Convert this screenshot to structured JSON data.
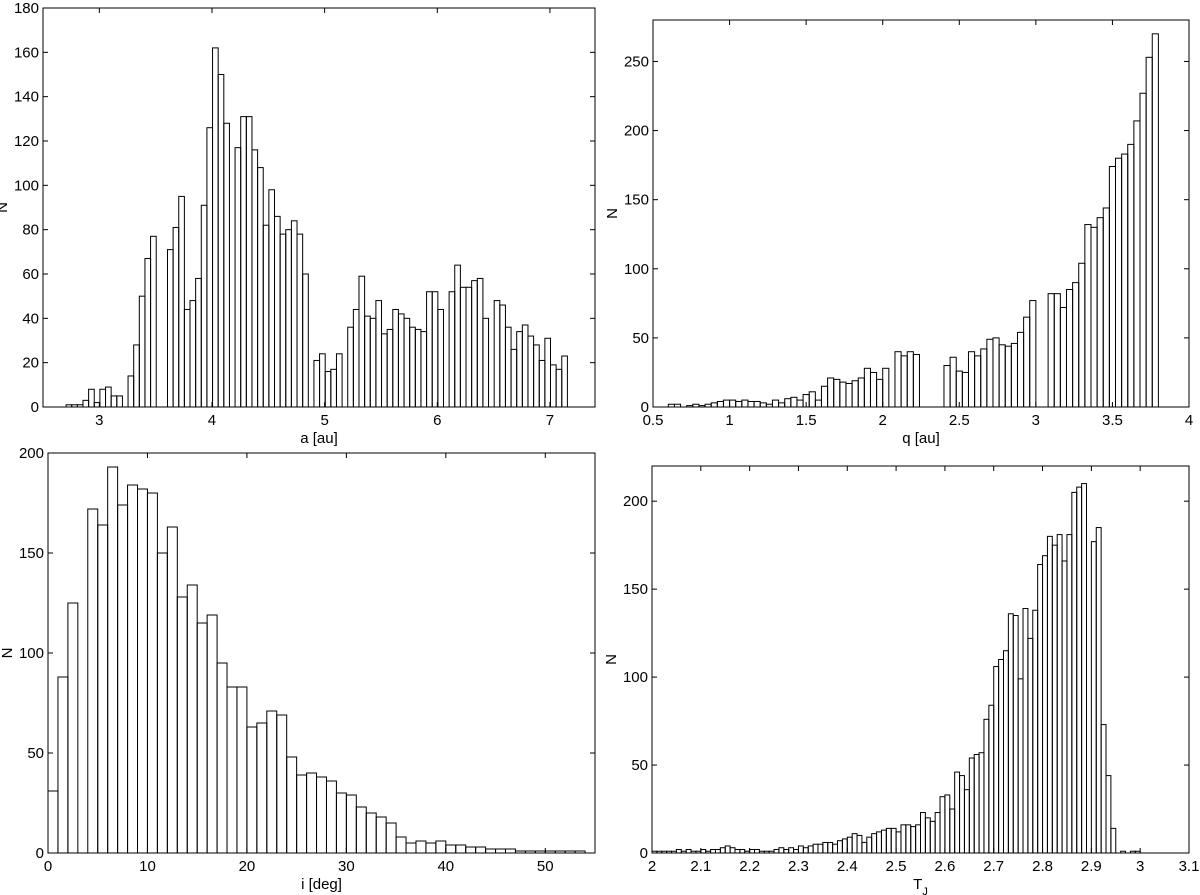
{
  "chart_data": [
    {
      "type": "bar",
      "xlabel": "a [au]",
      "ylabel": "N",
      "xlim": [
        2.5,
        7.4
      ],
      "ylim": [
        0,
        180
      ],
      "xticks": [
        3,
        4,
        5,
        6,
        7
      ],
      "yticks": [
        0,
        20,
        40,
        60,
        80,
        100,
        120,
        140,
        160,
        180
      ],
      "bin_width": 0.05,
      "x": [
        2.73,
        2.78,
        2.83,
        2.88,
        2.93,
        2.98,
        3.03,
        3.08,
        3.13,
        3.18,
        3.23,
        3.28,
        3.33,
        3.38,
        3.43,
        3.48,
        3.53,
        3.58,
        3.63,
        3.68,
        3.73,
        3.78,
        3.83,
        3.88,
        3.93,
        3.98,
        4.03,
        4.08,
        4.13,
        4.18,
        4.23,
        4.28,
        4.33,
        4.38,
        4.43,
        4.48,
        4.53,
        4.58,
        4.63,
        4.68,
        4.73,
        4.78,
        4.83,
        4.88,
        4.93,
        4.98,
        5.03,
        5.08,
        5.13,
        5.18,
        5.23,
        5.28,
        5.33,
        5.38,
        5.43,
        5.48,
        5.53,
        5.58,
        5.63,
        5.68,
        5.73,
        5.78,
        5.83,
        5.88,
        5.93,
        5.98,
        6.03,
        6.08,
        6.13,
        6.18,
        6.23,
        6.28,
        6.33,
        6.38,
        6.43,
        6.48,
        6.53,
        6.58,
        6.63,
        6.68,
        6.73,
        6.78,
        6.83,
        6.88,
        6.93,
        6.98,
        7.03,
        7.08,
        7.13,
        7.18,
        7.23,
        7.28
      ],
      "values": [
        1,
        1,
        1,
        3,
        8,
        2,
        8,
        9,
        5,
        5,
        0,
        14,
        28,
        50,
        67,
        77,
        0,
        0,
        71,
        81,
        95,
        44,
        48,
        58,
        91,
        126,
        162,
        150,
        128,
        0,
        117,
        131,
        131,
        116,
        108,
        82,
        98,
        86,
        78,
        80,
        84,
        78,
        60,
        0,
        21,
        24,
        16,
        17,
        24,
        0,
        36,
        44,
        59,
        41,
        40,
        48,
        33,
        35,
        44,
        42,
        40,
        36,
        35,
        34,
        52,
        52,
        44,
        0,
        52,
        64,
        54,
        54,
        57,
        58,
        40,
        0,
        48,
        46,
        36,
        26,
        34,
        37,
        32,
        28,
        21,
        31,
        19,
        17,
        23,
        0,
        0,
        0
      ]
    },
    {
      "type": "bar",
      "xlabel": "q [au]",
      "ylabel": "N",
      "xlim": [
        0.5,
        4
      ],
      "ylim": [
        0,
        280
      ],
      "xticks": [
        0.5,
        1,
        1.5,
        2,
        2.5,
        3,
        3.5,
        4
      ],
      "yticks": [
        0,
        50,
        100,
        150,
        200,
        250
      ],
      "bin_width": 0.04,
      "x": [
        0.62,
        0.66,
        0.7,
        0.74,
        0.78,
        0.82,
        0.86,
        0.9,
        0.94,
        0.98,
        1.02,
        1.06,
        1.1,
        1.14,
        1.18,
        1.22,
        1.26,
        1.3,
        1.34,
        1.38,
        1.42,
        1.46,
        1.5,
        1.54,
        1.58,
        1.62,
        1.66,
        1.7,
        1.74,
        1.78,
        1.82,
        1.86,
        1.9,
        1.94,
        1.98,
        2.02,
        2.06,
        2.1,
        2.14,
        2.18,
        2.22,
        2.26,
        2.3,
        2.34,
        2.38,
        2.42,
        2.46,
        2.5,
        2.54,
        2.58,
        2.62,
        2.66,
        2.7,
        2.74,
        2.78,
        2.82,
        2.86,
        2.9,
        2.94,
        2.98,
        3.02,
        3.06,
        3.1,
        3.14,
        3.18,
        3.22,
        3.26,
        3.3,
        3.34,
        3.38,
        3.42,
        3.46,
        3.5,
        3.54,
        3.58,
        3.62,
        3.66,
        3.7,
        3.74,
        3.78,
        3.82
      ],
      "values": [
        2,
        2,
        0,
        1,
        2,
        1,
        2,
        3,
        4,
        5,
        5,
        4,
        5,
        4,
        4,
        3,
        2,
        5,
        3,
        6,
        7,
        5,
        9,
        11,
        5,
        15,
        21,
        20,
        18,
        17,
        19,
        21,
        28,
        25,
        20,
        28,
        0,
        40,
        37,
        40,
        38,
        0,
        0,
        0,
        0,
        30,
        36,
        26,
        25,
        40,
        37,
        42,
        49,
        50,
        45,
        44,
        46,
        54,
        65,
        77,
        0,
        0,
        82,
        82,
        72,
        85,
        90,
        104,
        132,
        130,
        137,
        144,
        174,
        180,
        183,
        190,
        207,
        227,
        253,
        270,
        0
      ]
    },
    {
      "type": "bar",
      "xlabel": "i [deg]",
      "ylabel": "N",
      "xlim": [
        0,
        55
      ],
      "ylim": [
        0,
        200
      ],
      "xticks": [
        0,
        10,
        20,
        30,
        40,
        50
      ],
      "yticks": [
        0,
        50,
        100,
        150,
        200
      ],
      "bin_width": 1,
      "x": [
        0.5,
        1.5,
        2.5,
        3.5,
        4.5,
        5.5,
        6.5,
        7.5,
        8.5,
        9.5,
        10.5,
        11.5,
        12.5,
        13.5,
        14.5,
        15.5,
        16.5,
        17.5,
        18.5,
        19.5,
        20.5,
        21.5,
        22.5,
        23.5,
        24.5,
        25.5,
        26.5,
        27.5,
        28.5,
        29.5,
        30.5,
        31.5,
        32.5,
        33.5,
        34.5,
        35.5,
        36.5,
        37.5,
        38.5,
        39.5,
        40.5,
        41.5,
        42.5,
        43.5,
        44.5,
        45.5,
        46.5,
        47.5,
        48.5,
        49.5,
        50.5,
        51.5,
        52.5,
        53.5
      ],
      "values": [
        31,
        88,
        125,
        0,
        172,
        164,
        193,
        174,
        184,
        182,
        180,
        150,
        163,
        128,
        134,
        115,
        119,
        95,
        83,
        83,
        63,
        65,
        71,
        69,
        48,
        39,
        40,
        38,
        36,
        30,
        29,
        23,
        20,
        18,
        15,
        8,
        5,
        6,
        5,
        6,
        4,
        4,
        3,
        3,
        2,
        2,
        2,
        1,
        1,
        1,
        1,
        1,
        1,
        1
      ]
    },
    {
      "type": "bar",
      "xlabel": "T_J",
      "ylabel": "N",
      "xlim": [
        2,
        3.1
      ],
      "ylim": [
        0,
        220
      ],
      "xticks": [
        2,
        2.1,
        2.2,
        2.3,
        2.4,
        2.5,
        2.6,
        2.7,
        2.8,
        2.9,
        3,
        3.1
      ],
      "yticks": [
        0,
        50,
        100,
        150,
        200
      ],
      "bin_width": 0.01,
      "x": [
        2.005,
        2.015,
        2.025,
        2.035,
        2.045,
        2.055,
        2.065,
        2.075,
        2.085,
        2.095,
        2.105,
        2.115,
        2.125,
        2.135,
        2.145,
        2.155,
        2.165,
        2.175,
        2.185,
        2.195,
        2.205,
        2.215,
        2.225,
        2.235,
        2.245,
        2.255,
        2.265,
        2.275,
        2.285,
        2.295,
        2.305,
        2.315,
        2.325,
        2.335,
        2.345,
        2.355,
        2.365,
        2.375,
        2.385,
        2.395,
        2.405,
        2.415,
        2.425,
        2.435,
        2.445,
        2.455,
        2.465,
        2.475,
        2.485,
        2.495,
        2.505,
        2.515,
        2.525,
        2.535,
        2.545,
        2.555,
        2.565,
        2.575,
        2.585,
        2.595,
        2.605,
        2.615,
        2.625,
        2.635,
        2.645,
        2.655,
        2.665,
        2.675,
        2.685,
        2.695,
        2.705,
        2.715,
        2.725,
        2.735,
        2.745,
        2.755,
        2.765,
        2.775,
        2.785,
        2.795,
        2.805,
        2.815,
        2.825,
        2.835,
        2.845,
        2.855,
        2.865,
        2.875,
        2.885,
        2.895,
        2.905,
        2.915,
        2.925,
        2.935,
        2.945,
        2.955,
        2.965,
        2.975,
        2.985,
        2.995,
        3.005,
        3.015,
        3.025,
        3.035,
        3.045,
        3.055,
        3.065,
        3.075,
        3.085,
        3.095
      ],
      "values": [
        1,
        1,
        1,
        1,
        1,
        2,
        1,
        2,
        1,
        1,
        2,
        1,
        2,
        2,
        3,
        4,
        3,
        2,
        2,
        1,
        2,
        2,
        1,
        1,
        1,
        2,
        3,
        2,
        3,
        2,
        4,
        3,
        4,
        5,
        5,
        6,
        6,
        5,
        7,
        8,
        9,
        11,
        10,
        6,
        9,
        11,
        12,
        13,
        14,
        14,
        12,
        16,
        16,
        15,
        16,
        23,
        20,
        18,
        23,
        32,
        33,
        25,
        46,
        44,
        36,
        54,
        56,
        57,
        76,
        84,
        106,
        110,
        115,
        136,
        135,
        99,
        139,
        122,
        138,
        164,
        169,
        180,
        175,
        181,
        166,
        181,
        205,
        208,
        210,
        0,
        177,
        185,
        73,
        44,
        14,
        0,
        1,
        0,
        1,
        1,
        0,
        0,
        0,
        0,
        0,
        0,
        0,
        0,
        0,
        0
      ]
    }
  ]
}
